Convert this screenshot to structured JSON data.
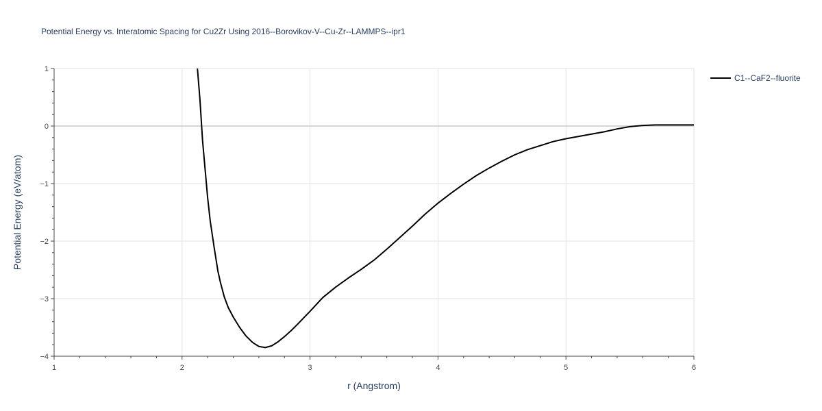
{
  "chart_data": {
    "type": "line",
    "title": "Potential Energy vs. Interatomic Spacing for Cu2Zr Using 2016--Borovikov-V--Cu-Zr--LAMMPS--ipr1",
    "xlabel": "r (Angstrom)",
    "ylabel": "Potential Energy (eV/atom)",
    "xlim": [
      1,
      6
    ],
    "ylim": [
      -4,
      1
    ],
    "x_ticks": [
      1,
      2,
      3,
      4,
      5,
      6
    ],
    "x_tick_labels": [
      "1",
      "2",
      "3",
      "4",
      "5",
      "6"
    ],
    "y_ticks": [
      -4,
      -3,
      -2,
      -1,
      0,
      1
    ],
    "y_tick_labels": [
      "−4",
      "−3",
      "−2",
      "−1",
      "0",
      "1"
    ],
    "grid": true,
    "legend_position": "top-right",
    "series": [
      {
        "name": "C1--CaF2--fluorite",
        "color": "#000000",
        "x": [
          2.12,
          2.14,
          2.16,
          2.18,
          2.2,
          2.22,
          2.25,
          2.28,
          2.3,
          2.33,
          2.36,
          2.4,
          2.45,
          2.5,
          2.55,
          2.6,
          2.65,
          2.7,
          2.75,
          2.8,
          2.85,
          2.9,
          3.0,
          3.1,
          3.2,
          3.3,
          3.4,
          3.5,
          3.6,
          3.7,
          3.8,
          3.9,
          4.0,
          4.1,
          4.2,
          4.3,
          4.4,
          4.5,
          4.6,
          4.7,
          4.8,
          4.9,
          5.0,
          5.1,
          5.2,
          5.3,
          5.4,
          5.5,
          5.6,
          5.7,
          5.8,
          5.9,
          6.0
        ],
        "y": [
          1.0,
          0.45,
          -0.25,
          -0.75,
          -1.25,
          -1.65,
          -2.1,
          -2.52,
          -2.72,
          -2.97,
          -3.15,
          -3.32,
          -3.5,
          -3.65,
          -3.76,
          -3.83,
          -3.85,
          -3.82,
          -3.75,
          -3.66,
          -3.56,
          -3.45,
          -3.22,
          -2.98,
          -2.8,
          -2.64,
          -2.49,
          -2.33,
          -2.14,
          -1.94,
          -1.74,
          -1.53,
          -1.34,
          -1.17,
          -1.01,
          -0.86,
          -0.73,
          -0.61,
          -0.5,
          -0.41,
          -0.34,
          -0.27,
          -0.22,
          -0.18,
          -0.14,
          -0.1,
          -0.05,
          -0.01,
          0.01,
          0.02,
          0.02,
          0.02,
          0.02
        ]
      }
    ]
  }
}
